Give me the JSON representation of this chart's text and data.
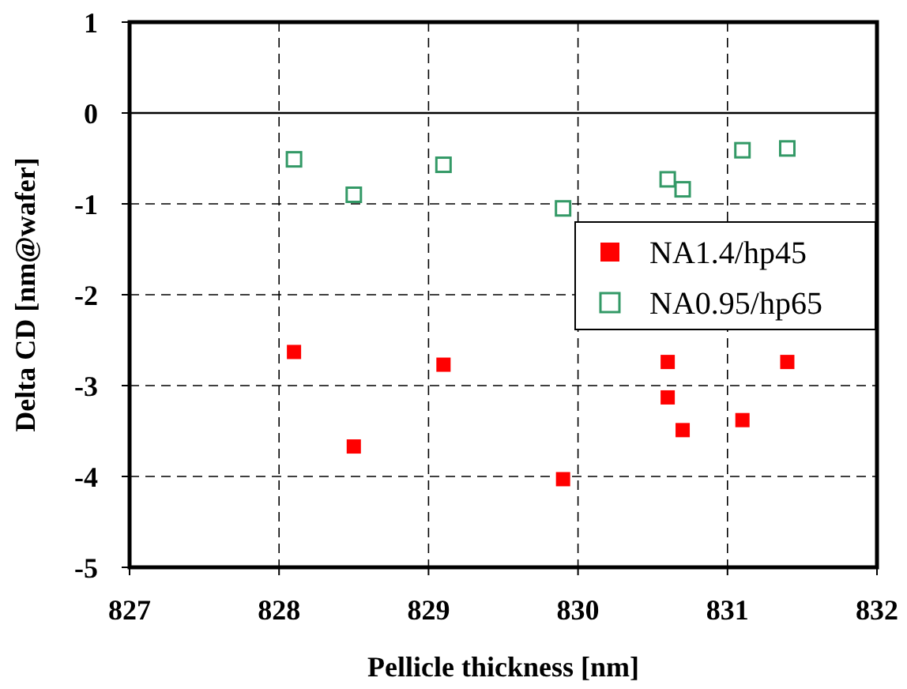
{
  "chart_data": {
    "type": "scatter",
    "xlabel": "Pellicle thickness [nm]",
    "ylabel": "Delta CD [nm@wafer]",
    "xlim": [
      827,
      832
    ],
    "xticks": [
      827,
      828,
      829,
      830,
      831,
      832
    ],
    "ylim": [
      -5,
      1
    ],
    "yticks": [
      -5,
      -4,
      -3,
      -2,
      -1,
      0,
      1
    ],
    "grid": true,
    "legend": "right",
    "marker": "square",
    "ref_lines": [
      {
        "axis": "y",
        "value": 0,
        "color": "#000000",
        "line_style": "solid"
      }
    ],
    "series": [
      {
        "name": "NA1.4/hp45",
        "color": "#ff0000",
        "x": [
          828.1,
          828.5,
          829.1,
          829.9,
          830.6,
          830.6,
          830.7,
          831.1,
          831.4
        ],
        "values": [
          -2.63,
          -3.67,
          -2.77,
          -4.03,
          -2.74,
          -3.13,
          -3.49,
          -3.38,
          -2.74
        ]
      },
      {
        "name": "NA0.95/hp65",
        "color": "#339966",
        "marker": "square-open",
        "x": [
          828.1,
          828.5,
          829.1,
          829.9,
          830.6,
          830.7,
          831.1,
          831.4
        ],
        "values": [
          -0.51,
          -0.9,
          -0.57,
          -1.05,
          -0.73,
          -0.84,
          -0.41,
          -0.39
        ]
      }
    ]
  }
}
